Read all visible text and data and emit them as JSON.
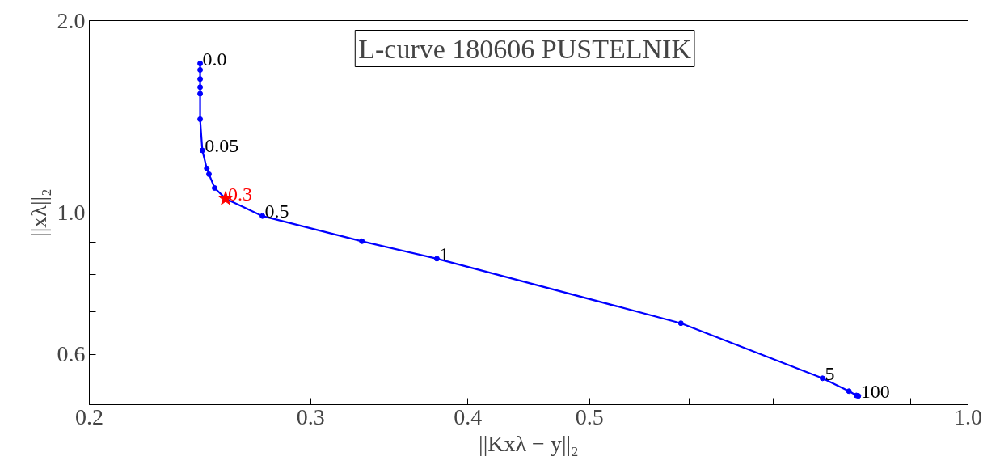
{
  "chart_data": {
    "type": "line",
    "title": "L-curve 180606 PUSTELNIK",
    "xlabel": "||Kxλ − y||₂",
    "ylabel": "||xλ||₂",
    "log": "xy",
    "grid": false,
    "marker": "circle",
    "line_style": "solid",
    "xlim": [
      0.2,
      1.0
    ],
    "xticks": [
      0.2,
      0.3,
      0.4,
      0.5,
      {
        "value": 0.6,
        "label": null
      },
      {
        "value": 0.7,
        "label": null
      },
      {
        "value": 0.8,
        "label": null
      },
      {
        "value": 0.9,
        "label": null
      },
      {
        "value": 1.0,
        "label": "1.0"
      }
    ],
    "ylim": [
      0.5,
      2.0
    ],
    "yticks": [
      0.6,
      {
        "value": 0.7,
        "label": null
      },
      {
        "value": 0.8,
        "label": null
      },
      {
        "value": 0.9,
        "label": null
      },
      {
        "value": 1.0,
        "label": "1.0"
      },
      {
        "value": 2.0,
        "label": "2.0"
      }
    ],
    "series": [
      {
        "color": "#0000ff",
        "x": [
          0.245,
          0.245,
          0.245,
          0.245,
          0.245,
          0.245,
          0.246,
          0.248,
          0.249,
          0.2516,
          0.2567,
          0.2746,
          0.3295,
          0.378,
          0.591,
          0.766,
          0.804,
          0.815,
          0.818
        ],
        "values": [
          1.713,
          1.674,
          1.62,
          1.573,
          1.536,
          1.401,
          1.252,
          1.173,
          1.149,
          1.093,
          1.052,
          0.988,
          0.902,
          0.847,
          0.671,
          0.55,
          0.525,
          0.517,
          0.516
        ]
      },
      {
        "type": "scatter",
        "marker": "star",
        "color": "#ff0000",
        "x": [
          0.2567
        ],
        "values": [
          1.052
        ]
      }
    ],
    "annotations": [
      {
        "text": "0.0",
        "x": 0.245,
        "y": 1.713
      },
      {
        "text": "0.05",
        "x": 0.246,
        "y": 1.252
      },
      {
        "text": "0.3",
        "x": 0.2567,
        "y": 1.052
      },
      {
        "text": "0.5",
        "x": 0.2746,
        "y": 0.988
      },
      {
        "text": "1",
        "x": 0.378,
        "y": 0.847
      },
      {
        "text": "5",
        "x": 0.766,
        "y": 0.55
      },
      {
        "text": "100",
        "x": 0.818,
        "y": 0.516
      }
    ]
  }
}
